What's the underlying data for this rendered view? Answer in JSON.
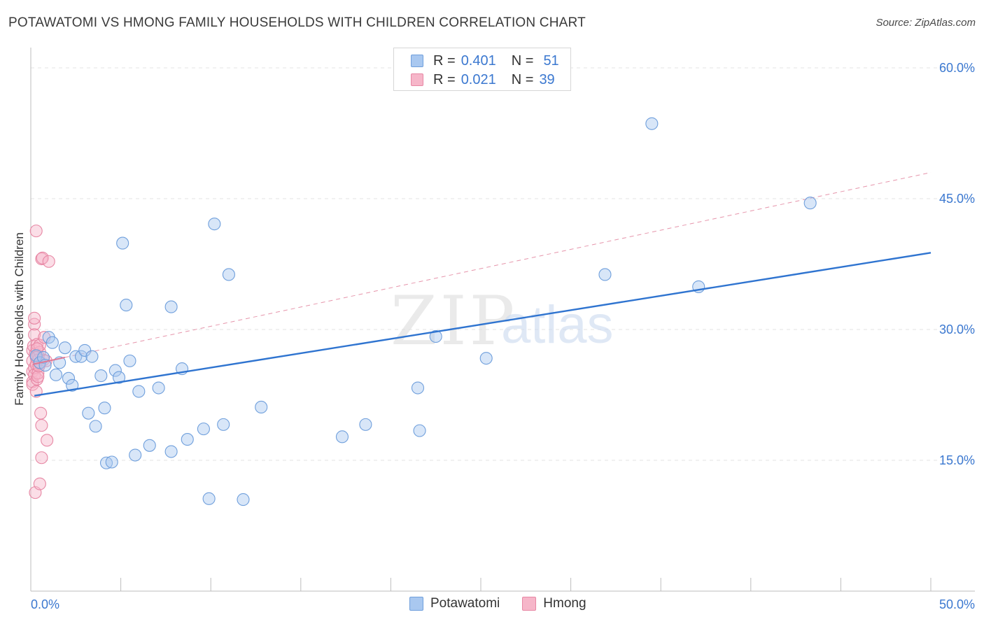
{
  "title": "POTAWATOMI VS HMONG FAMILY HOUSEHOLDS WITH CHILDREN CORRELATION CHART",
  "source": "Source: ZipAtlas.com",
  "watermark": {
    "zip": "ZIP",
    "atlas": "atlas"
  },
  "legend": {
    "rows": [
      {
        "r_label": "R =",
        "r_value": "0.401",
        "n_label": "N =",
        "n_value": "51"
      },
      {
        "r_label": "R =",
        "r_value": "0.021",
        "n_label": "N =",
        "n_value": "39"
      }
    ]
  },
  "colors": {
    "potawatomi_fill": "#a9c8f0",
    "potawatomi_stroke": "#6f9fdc",
    "potawatomi_line": "#2f74d0",
    "hmong_fill": "#f6b6c9",
    "hmong_stroke": "#e787a4",
    "hmong_line": "#e07a96",
    "grid": "#e3e3e3",
    "axis_text": "#3b78d0"
  },
  "chart_data": {
    "type": "scatter",
    "title": "POTAWATOMI VS HMONG FAMILY HOUSEHOLDS WITH CHILDREN CORRELATION CHART",
    "xlabel": "",
    "ylabel": "Family Households with Children",
    "xlim": [
      0,
      50
    ],
    "ylim": [
      0,
      61.5
    ],
    "x_tick_labels": [
      "0.0%",
      "50.0%"
    ],
    "y_ticks": [
      15,
      30,
      45,
      60
    ],
    "y_tick_labels": [
      "15.0%",
      "30.0%",
      "45.0%",
      "60.0%"
    ],
    "legend_position": "top-center",
    "series": [
      {
        "name": "Potawatomi",
        "r": 0.401,
        "n": 51,
        "trend": {
          "x": [
            0.2,
            50
          ],
          "y": [
            22.4,
            38.8
          ],
          "style": "solid"
        },
        "points": [
          [
            0.3,
            27.0
          ],
          [
            0.5,
            26.2
          ],
          [
            0.7,
            26.8
          ],
          [
            0.8,
            25.9
          ],
          [
            1.0,
            29.1
          ],
          [
            1.2,
            28.5
          ],
          [
            1.4,
            24.8
          ],
          [
            1.6,
            26.2
          ],
          [
            1.9,
            27.9
          ],
          [
            2.1,
            24.4
          ],
          [
            2.3,
            23.6
          ],
          [
            2.5,
            26.9
          ],
          [
            2.8,
            26.9
          ],
          [
            3.0,
            27.6
          ],
          [
            3.2,
            20.4
          ],
          [
            3.4,
            26.9
          ],
          [
            3.6,
            18.9
          ],
          [
            3.9,
            24.7
          ],
          [
            4.1,
            21.0
          ],
          [
            4.2,
            14.7
          ],
          [
            4.5,
            14.8
          ],
          [
            4.7,
            25.3
          ],
          [
            4.9,
            24.5
          ],
          [
            5.1,
            39.9
          ],
          [
            5.3,
            32.8
          ],
          [
            5.5,
            26.4
          ],
          [
            5.8,
            15.6
          ],
          [
            6.0,
            22.9
          ],
          [
            6.6,
            16.7
          ],
          [
            7.1,
            23.3
          ],
          [
            7.8,
            32.6
          ],
          [
            7.8,
            16.0
          ],
          [
            8.4,
            25.5
          ],
          [
            8.7,
            17.4
          ],
          [
            9.6,
            18.6
          ],
          [
            9.9,
            10.6
          ],
          [
            10.2,
            42.1
          ],
          [
            10.7,
            19.1
          ],
          [
            11.0,
            36.3
          ],
          [
            11.8,
            10.5
          ],
          [
            12.8,
            21.1
          ],
          [
            17.3,
            17.7
          ],
          [
            18.6,
            19.1
          ],
          [
            21.5,
            23.3
          ],
          [
            21.6,
            18.4
          ],
          [
            22.5,
            29.2
          ],
          [
            25.3,
            26.7
          ],
          [
            31.9,
            36.3
          ],
          [
            34.5,
            53.6
          ],
          [
            37.1,
            34.9
          ],
          [
            43.3,
            44.5
          ]
        ]
      },
      {
        "name": "Hmong",
        "r": 0.021,
        "n": 39,
        "trend_solid": {
          "x": [
            0.1,
            1.9
          ],
          "y": [
            26.0,
            26.8
          ],
          "style": "solid"
        },
        "trend_dashed": {
          "x": [
            1.9,
            50
          ],
          "y": [
            26.8,
            48.0
          ],
          "style": "dashed"
        },
        "points": [
          [
            0.1,
            25.2
          ],
          [
            0.1,
            26.4
          ],
          [
            0.1,
            24.0
          ],
          [
            0.1,
            23.7
          ],
          [
            0.1,
            27.6
          ],
          [
            0.15,
            28.1
          ],
          [
            0.2,
            30.6
          ],
          [
            0.2,
            31.3
          ],
          [
            0.2,
            29.4
          ],
          [
            0.2,
            25.6
          ],
          [
            0.2,
            24.8
          ],
          [
            0.25,
            11.3
          ],
          [
            0.25,
            27.2
          ],
          [
            0.3,
            26.0
          ],
          [
            0.3,
            22.9
          ],
          [
            0.3,
            41.3
          ],
          [
            0.35,
            28.3
          ],
          [
            0.35,
            24.3
          ],
          [
            0.4,
            25.0
          ],
          [
            0.4,
            27.0
          ],
          [
            0.4,
            24.6
          ],
          [
            0.45,
            26.6
          ],
          [
            0.5,
            27.4
          ],
          [
            0.5,
            28.2
          ],
          [
            0.5,
            26.1
          ],
          [
            0.5,
            12.3
          ],
          [
            0.55,
            20.4
          ],
          [
            0.6,
            19.0
          ],
          [
            0.6,
            15.3
          ],
          [
            0.6,
            38.1
          ],
          [
            0.65,
            38.2
          ],
          [
            0.7,
            26.5
          ],
          [
            0.75,
            29.1
          ],
          [
            0.85,
            26.4
          ],
          [
            0.9,
            17.3
          ],
          [
            1.0,
            37.8
          ],
          [
            0.35,
            27.8
          ],
          [
            0.45,
            25.8
          ],
          [
            0.3,
            26.8
          ]
        ]
      }
    ]
  },
  "bottom_legend": {
    "items": [
      "Potawatomi",
      "Hmong"
    ]
  }
}
